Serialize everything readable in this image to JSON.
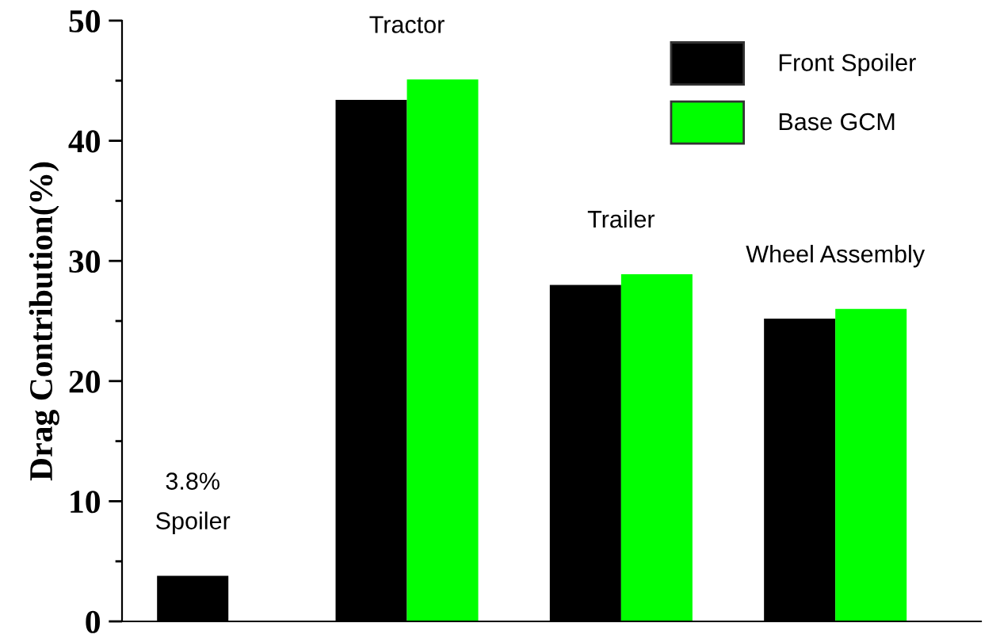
{
  "chart_data": {
    "type": "bar",
    "ylabel": "Drag Contribution(%)",
    "categories": [
      "Spoiler",
      "Tractor",
      "Trailer",
      "Wheel Assembly"
    ],
    "series": [
      {
        "name": "Front Spoiler",
        "color": "#000000",
        "values": [
          3.8,
          43.4,
          28.0,
          25.2
        ]
      },
      {
        "name": "Base GCM",
        "color": "#00ff00",
        "values": [
          null,
          45.1,
          28.9,
          26.0
        ]
      }
    ],
    "ylim": [
      0,
      50
    ],
    "yticks": [
      0,
      10,
      20,
      30,
      40,
      50
    ],
    "legend": "top right",
    "grid": false,
    "annotations": [
      "3.8%"
    ]
  }
}
